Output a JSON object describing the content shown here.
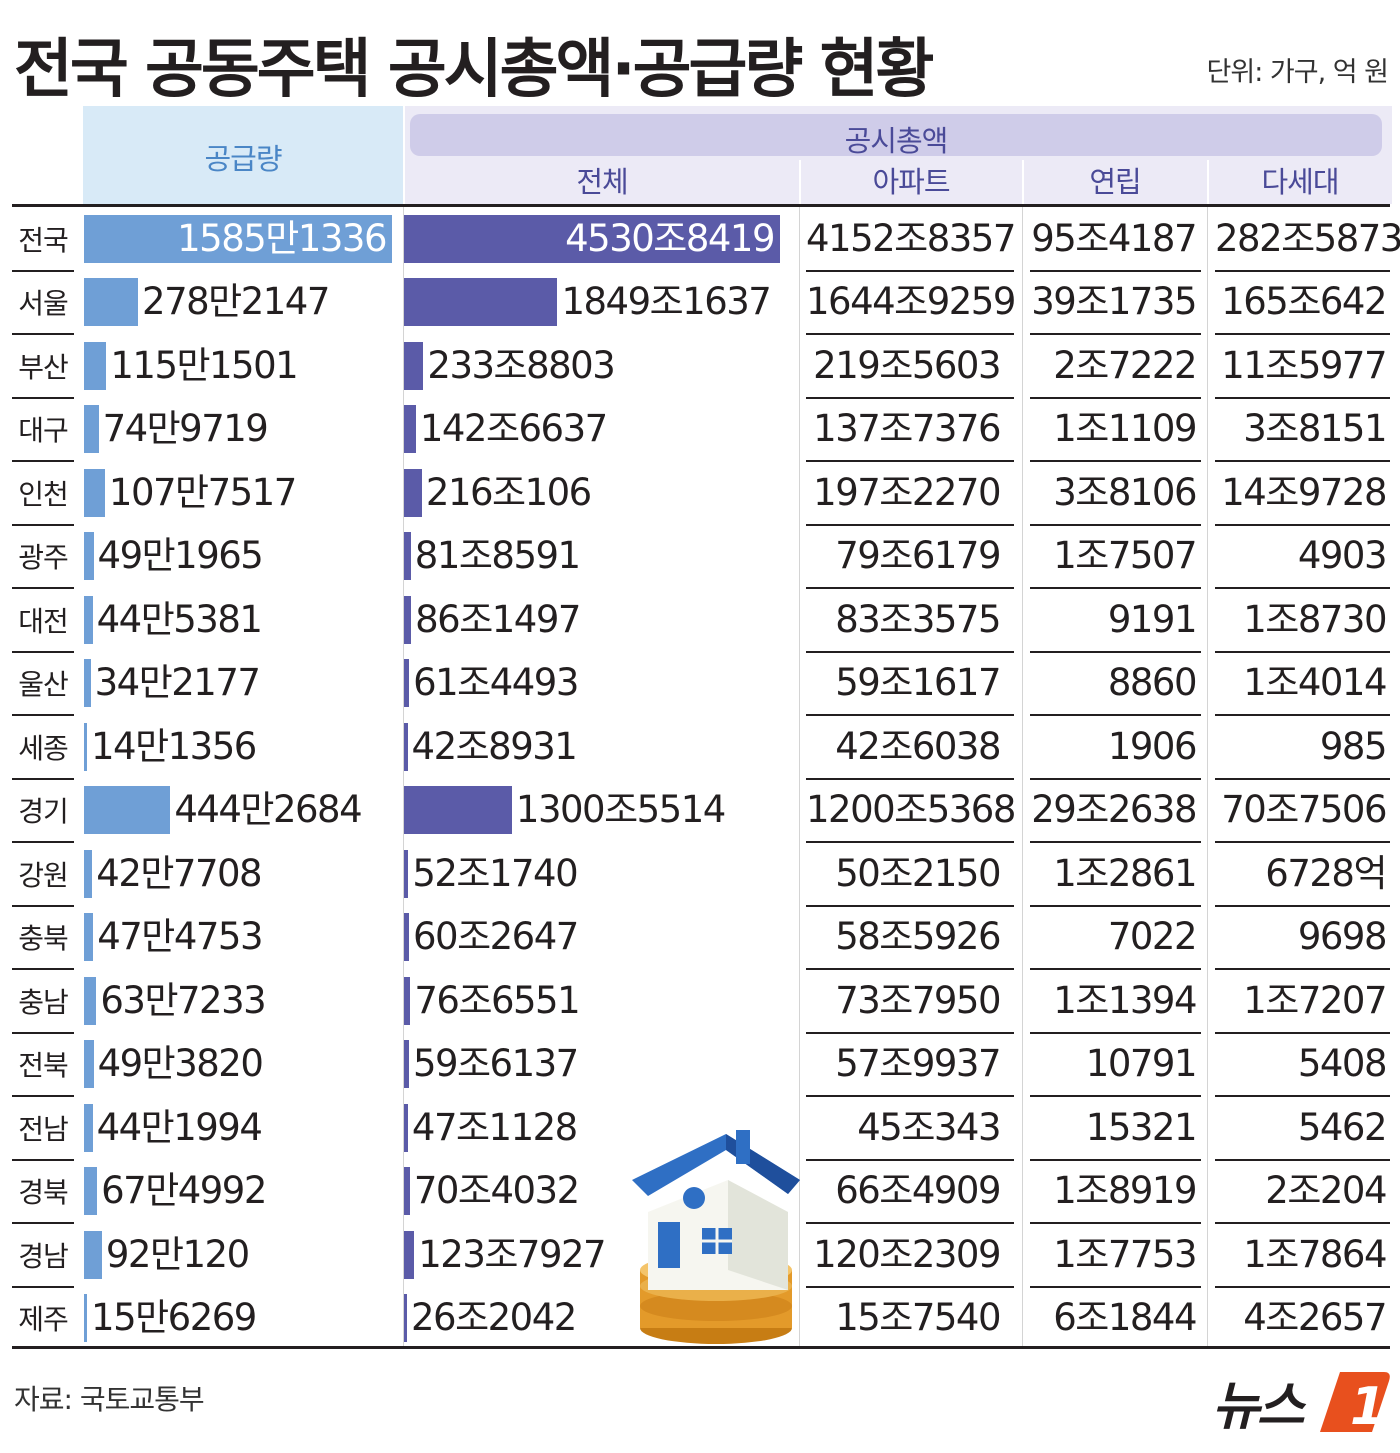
{
  "title": "전국 공동주택 공시총액·공급량 현황",
  "unit": "단위: 가구, 억 원",
  "source": "자료: 국토교통부",
  "logo_text": "뉴스1",
  "headers": {
    "supply": "공급량",
    "total_group": "공시총액",
    "total": "전체",
    "apt": "아파트",
    "rowhouse": "연립",
    "multi": "다세대"
  },
  "colors": {
    "supply_bar": "#6f9fd6",
    "total_bar": "#5b5ba8",
    "supply_header": "#d8eaf7",
    "total_header": "#cfcce9"
  },
  "chart_data": {
    "type": "table",
    "columns": [
      "공급량",
      "전체",
      "아파트",
      "연립",
      "다세대"
    ],
    "rows": [
      {
        "region": "전국",
        "supply": "1585만1336",
        "supply_value": 15851336,
        "total": "4530조8419",
        "total_value": 45308419,
        "apt": "4152조8357",
        "rowhouse": "95조4187",
        "multi": "282조5873"
      },
      {
        "region": "서울",
        "supply": "278만2147",
        "supply_value": 2782147,
        "total": "1849조1637",
        "total_value": 18491637,
        "apt": "1644조9259",
        "rowhouse": "39조1735",
        "multi": "165조642"
      },
      {
        "region": "부산",
        "supply": "115만1501",
        "supply_value": 1151501,
        "total": "233조8803",
        "total_value": 2338803,
        "apt": "219조5603",
        "rowhouse": "2조7222",
        "multi": "11조5977"
      },
      {
        "region": "대구",
        "supply": "74만9719",
        "supply_value": 749719,
        "total": "142조6637",
        "total_value": 1426637,
        "apt": "137조7376",
        "rowhouse": "1조1109",
        "multi": "3조8151"
      },
      {
        "region": "인천",
        "supply": "107만7517",
        "supply_value": 1077517,
        "total": "216조106",
        "total_value": 2160106,
        "apt": "197조2270",
        "rowhouse": "3조8106",
        "multi": "14조9728"
      },
      {
        "region": "광주",
        "supply": "49만1965",
        "supply_value": 491965,
        "total": "81조8591",
        "total_value": 818591,
        "apt": "79조6179",
        "rowhouse": "1조7507",
        "multi": "4903"
      },
      {
        "region": "대전",
        "supply": "44만5381",
        "supply_value": 445381,
        "total": "86조1497",
        "total_value": 861497,
        "apt": "83조3575",
        "rowhouse": "9191",
        "multi": "1조8730"
      },
      {
        "region": "울산",
        "supply": "34만2177",
        "supply_value": 342177,
        "total": "61조4493",
        "total_value": 614493,
        "apt": "59조1617",
        "rowhouse": "8860",
        "multi": "1조4014"
      },
      {
        "region": "세종",
        "supply": "14만1356",
        "supply_value": 141356,
        "total": "42조8931",
        "total_value": 428931,
        "apt": "42조6038",
        "rowhouse": "1906",
        "multi": "985"
      },
      {
        "region": "경기",
        "supply": "444만2684",
        "supply_value": 4442684,
        "total": "1300조5514",
        "total_value": 13005514,
        "apt": "1200조5368",
        "rowhouse": "29조2638",
        "multi": "70조7506"
      },
      {
        "region": "강원",
        "supply": "42만7708",
        "supply_value": 427708,
        "total": "52조1740",
        "total_value": 521740,
        "apt": "50조2150",
        "rowhouse": "1조2861",
        "multi": "6728억"
      },
      {
        "region": "충북",
        "supply": "47만4753",
        "supply_value": 474753,
        "total": "60조2647",
        "total_value": 602647,
        "apt": "58조5926",
        "rowhouse": "7022",
        "multi": "9698"
      },
      {
        "region": "충남",
        "supply": "63만7233",
        "supply_value": 637233,
        "total": "76조6551",
        "total_value": 766551,
        "apt": "73조7950",
        "rowhouse": "1조1394",
        "multi": "1조7207"
      },
      {
        "region": "전북",
        "supply": "49만3820",
        "supply_value": 493820,
        "total": "59조6137",
        "total_value": 596137,
        "apt": "57조9937",
        "rowhouse": "10791",
        "multi": "5408"
      },
      {
        "region": "전남",
        "supply": "44만1994",
        "supply_value": 441994,
        "total": "47조1128",
        "total_value": 471128,
        "apt": "45조343",
        "rowhouse": "15321",
        "multi": "5462"
      },
      {
        "region": "경북",
        "supply": "67만4992",
        "supply_value": 674992,
        "total": "70조4032",
        "total_value": 704032,
        "apt": "66조4909",
        "rowhouse": "1조8919",
        "multi": "2조204"
      },
      {
        "region": "경남",
        "supply": "92만120",
        "supply_value": 920120,
        "total": "123조7927",
        "total_value": 1237927,
        "apt": "120조2309",
        "rowhouse": "1조7753",
        "multi": "1조7864"
      },
      {
        "region": "제주",
        "supply": "15만6269",
        "supply_value": 156269,
        "total": "26조2042",
        "total_value": 262042,
        "apt": "15조7540",
        "rowhouse": "6조1844",
        "multi": "4조2657"
      }
    ]
  }
}
